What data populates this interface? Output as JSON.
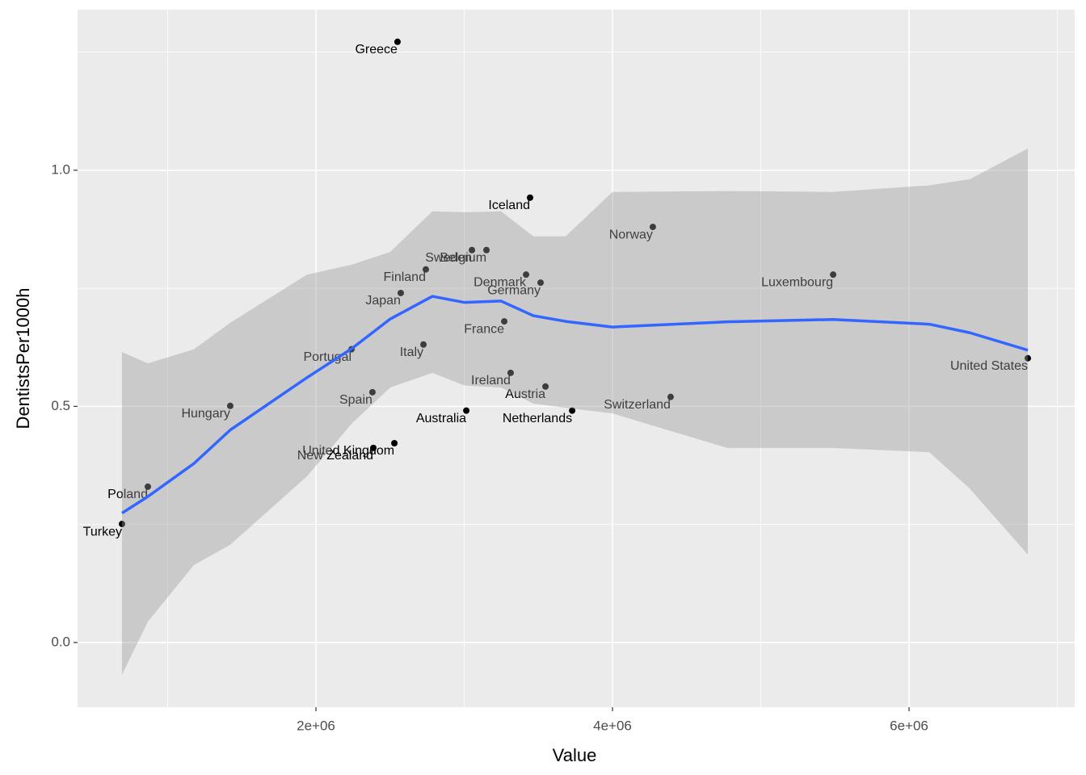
{
  "chart_data": {
    "type": "scatter",
    "x_label": "Value",
    "y_label": "DentistsPer1000h",
    "xlim": [
      392400,
      7117000
    ],
    "ylim": [
      -0.137,
      1.34
    ],
    "xticks": [
      {
        "value": 2000000,
        "label": "2e+06"
      },
      {
        "value": 4000000,
        "label": "4e+06"
      },
      {
        "value": 6000000,
        "label": "6e+06"
      }
    ],
    "yticks": [
      {
        "value": 0,
        "label": "0.0"
      },
      0.5,
      {
        "value": 1,
        "label": "1.0"
      }
    ],
    "minor_xticks": [
      1000000,
      3000000,
      5000000,
      7000000
    ],
    "minor_yticks": [
      0.25,
      0.75,
      1.25
    ],
    "grid": true,
    "points": {
      "color": "#000000",
      "labels": [
        "Greece",
        "Iceland",
        "Norway",
        "Sweden",
        "Belgium",
        "Finland",
        "Denmark",
        "Germany",
        "Luxembourg",
        "Japan",
        "France",
        "Italy",
        "Portugal",
        "United States",
        "Ireland",
        "Austria",
        "Switzerland",
        "Spain",
        "Hungary",
        "Australia",
        "Netherlands",
        "United Kingdom",
        "New Zealand",
        "Poland",
        "Turkey"
      ],
      "x": [
        2550000,
        3444000,
        4272000,
        3052000,
        3150000,
        2741000,
        3417000,
        3515000,
        5488000,
        2572000,
        3270000,
        2725000,
        2240000,
        6801000,
        3313000,
        3548000,
        4392000,
        2381000,
        1422000,
        3014000,
        3728000,
        2529000,
        2387000,
        866500,
        692000
      ],
      "values": [
        1.272,
        0.942,
        0.88,
        0.831,
        0.831,
        0.79,
        0.779,
        0.762,
        0.779,
        0.74,
        0.68,
        0.631,
        0.621,
        0.602,
        0.571,
        0.542,
        0.52,
        0.53,
        0.501,
        0.491,
        0.491,
        0.422,
        0.412,
        0.33,
        0.251
      ]
    },
    "smooth": {
      "color": "#3366FF",
      "band_color": "#999999",
      "x": [
        692000,
        866500,
        1177000,
        1422000,
        1940000,
        2240000,
        2501000,
        2785000,
        3003000,
        3248000,
        3466000,
        3684000,
        4000000,
        4774000,
        5488000,
        6136000,
        6409000,
        6801000
      ],
      "values": [
        0.274,
        0.309,
        0.379,
        0.45,
        0.561,
        0.622,
        0.685,
        0.733,
        0.72,
        0.723,
        0.692,
        0.68,
        0.668,
        0.679,
        0.684,
        0.674,
        0.656,
        0.619
      ],
      "upper": [
        0.615,
        0.591,
        0.621,
        0.677,
        0.779,
        0.8,
        0.827,
        0.913,
        0.911,
        0.913,
        0.86,
        0.86,
        0.954,
        0.956,
        0.954,
        0.968,
        0.981,
        1.046
      ],
      "lower": [
        -0.068,
        0.044,
        0.164,
        0.207,
        0.352,
        0.463,
        0.54,
        0.571,
        0.544,
        0.54,
        0.506,
        0.497,
        0.485,
        0.412,
        0.412,
        0.403,
        0.326,
        0.186
      ]
    }
  }
}
